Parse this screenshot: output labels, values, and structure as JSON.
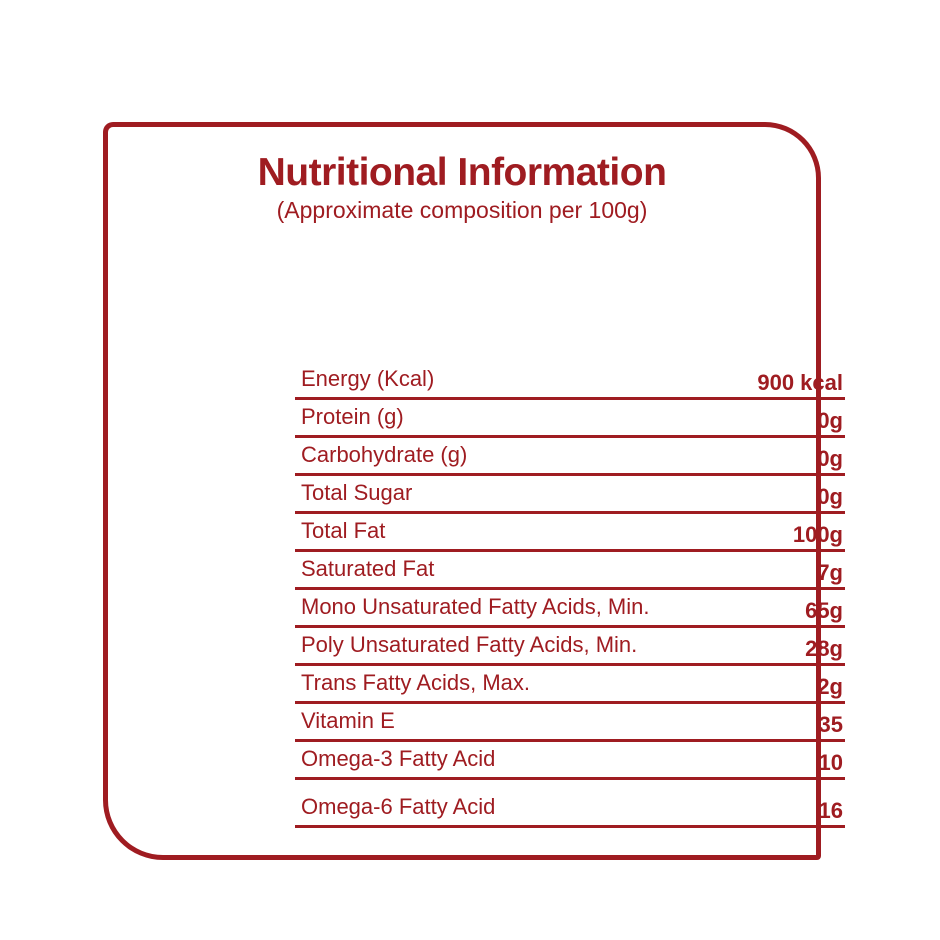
{
  "colors": {
    "accent": "#9f1c21",
    "background": "#ffffff"
  },
  "header": {
    "title": "Nutritional Information",
    "subtitle": "(Approximate composition per 100g)"
  },
  "table": {
    "rows": [
      {
        "label": "Energy (Kcal)",
        "value": "900 kcal"
      },
      {
        "label": "Protein (g)",
        "value": "0g"
      },
      {
        "label": "Carbohydrate (g)",
        "value": "0g"
      },
      {
        "label": "Total Sugar",
        "value": "0g"
      },
      {
        "label": "Total Fat",
        "value": "100g"
      },
      {
        "label": "Saturated Fat",
        "value": "7g"
      },
      {
        "label": "Mono Unsaturated Fatty Acids, Min.",
        "value": "65g"
      },
      {
        "label": "Poly Unsaturated Fatty Acids, Min.",
        "value": "28g"
      },
      {
        "label": "Trans Fatty Acids, Max.",
        "value": "2g"
      },
      {
        "label": "Vitamin E",
        "value": "35"
      },
      {
        "label": "Omega-3 Fatty Acid",
        "value": "10"
      },
      {
        "label": "Omega-6 Fatty Acid",
        "value": "16"
      }
    ]
  }
}
